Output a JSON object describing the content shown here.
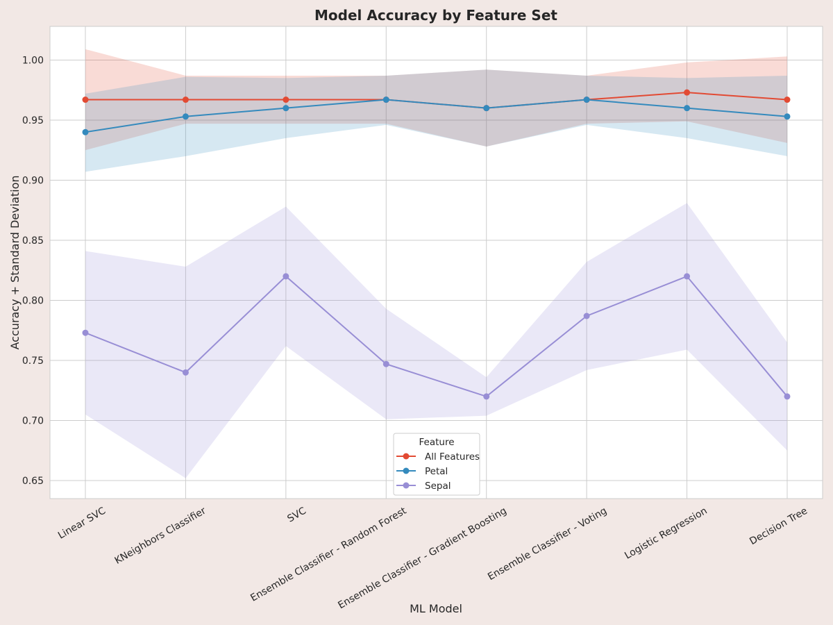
{
  "chart_data": {
    "type": "line",
    "title": "Model Accuracy by Feature Set",
    "xlabel": "ML Model",
    "ylabel": "Accuracy + Standard Deviation",
    "categories": [
      "Linear SVC",
      "KNeighbors Classifier",
      "SVC",
      "Ensemble Classifier - Random Forest",
      "Ensemble Classifier - Gradient Boosting",
      "Ensemble Classifier - Voting",
      "Logistic Regression",
      "Decision Tree"
    ],
    "ylim": [
      0.635,
      1.028
    ],
    "yticks": [
      0.65,
      0.7,
      0.75,
      0.8,
      0.85,
      0.9,
      0.95,
      1.0
    ],
    "ytick_labels": [
      "0.65",
      "0.70",
      "0.75",
      "0.80",
      "0.85",
      "0.90",
      "0.95",
      "1.00"
    ],
    "grid": true,
    "legend": {
      "title": "Feature",
      "position": "bottom-center"
    },
    "series": [
      {
        "name": "All Features",
        "color": "#E24A33",
        "values": [
          0.967,
          0.967,
          0.967,
          0.967,
          0.96,
          0.967,
          0.973,
          0.967
        ],
        "lower": [
          0.925,
          0.947,
          0.947,
          0.947,
          0.928,
          0.947,
          0.949,
          0.931
        ],
        "upper": [
          1.009,
          0.987,
          0.987,
          0.987,
          0.992,
          0.987,
          0.998,
          1.003
        ]
      },
      {
        "name": "Petal",
        "color": "#348ABD",
        "values": [
          0.94,
          0.953,
          0.96,
          0.967,
          0.96,
          0.967,
          0.96,
          0.953
        ],
        "lower": [
          0.907,
          0.92,
          0.935,
          0.946,
          0.928,
          0.946,
          0.935,
          0.92
        ],
        "upper": [
          0.972,
          0.986,
          0.985,
          0.987,
          0.992,
          0.987,
          0.985,
          0.987
        ]
      },
      {
        "name": "Sepal",
        "color": "#988ED5",
        "values": [
          0.773,
          0.74,
          0.82,
          0.747,
          0.72,
          0.787,
          0.82,
          0.72
        ],
        "lower": [
          0.705,
          0.652,
          0.762,
          0.701,
          0.704,
          0.742,
          0.759,
          0.675
        ],
        "upper": [
          0.841,
          0.828,
          0.878,
          0.793,
          0.736,
          0.832,
          0.881,
          0.765
        ]
      }
    ]
  }
}
